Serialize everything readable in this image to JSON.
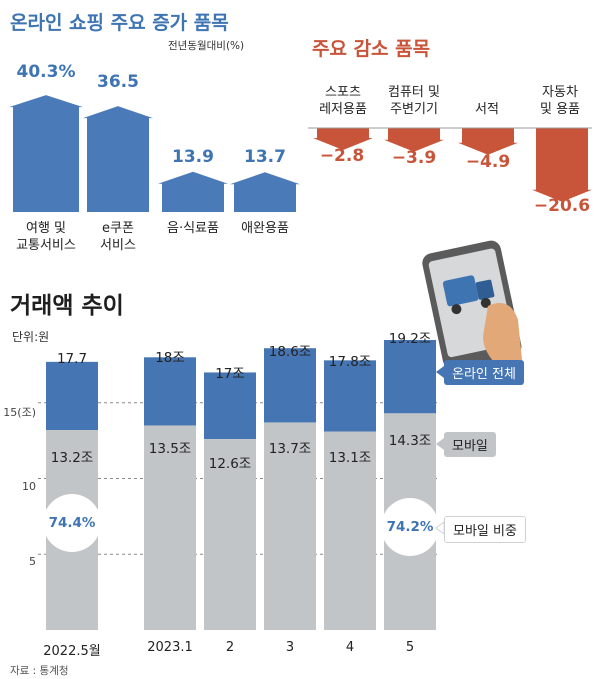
{
  "increase": {
    "title": "온라인 쇼핑 주요 증가 품목",
    "unit_note": "전년동월대비(%)",
    "items": [
      {
        "label_line1": "여행 및",
        "label_line2": "교통서비스",
        "value_label": "40.3%"
      },
      {
        "label_line1": "e쿠폰",
        "label_line2": "서비스",
        "value_label": "36.5"
      },
      {
        "label_line1": "음·식료품",
        "label_line2": "",
        "value_label": "13.9"
      },
      {
        "label_line1": "애완용품",
        "label_line2": "",
        "value_label": "13.7"
      }
    ]
  },
  "decrease": {
    "title": "주요 감소 품목",
    "items": [
      {
        "label_line1": "스포츠",
        "label_line2": "레저용품",
        "value_label": "−2.8"
      },
      {
        "label_line1": "컴퓨터 및",
        "label_line2": "주변기기",
        "value_label": "−3.9"
      },
      {
        "label_line1": "서적",
        "label_line2": "",
        "value_label": "−4.9"
      },
      {
        "label_line1": "자동차",
        "label_line2": "및 용품",
        "value_label": "−20.6"
      }
    ]
  },
  "volume": {
    "title": "거래액 추이",
    "unit": "단위:원",
    "source": "자료 : 통계청",
    "legend": {
      "total": "온라인 전체",
      "mobile": "모바일",
      "share": "모바일 비중"
    }
  },
  "colors": {
    "blue": "#4675b3",
    "gray": "#c1c5c8",
    "red": "#c8553a"
  },
  "chart_data": [
    {
      "type": "bar",
      "title": "온라인 쇼핑 주요 증가 품목",
      "ylabel": "전년동월대비(%)",
      "categories": [
        "여행 및 교통서비스",
        "e쿠폰 서비스",
        "음·식료품",
        "애완용품"
      ],
      "values": [
        40.3,
        36.5,
        13.9,
        13.7
      ]
    },
    {
      "type": "bar",
      "title": "주요 감소 품목",
      "categories": [
        "스포츠 레저용품",
        "컴퓨터 및 주변기기",
        "서적",
        "자동차 및 용품"
      ],
      "values": [
        -2.8,
        -3.9,
        -4.9,
        -20.6
      ]
    },
    {
      "type": "bar",
      "title": "거래액 추이",
      "ylabel": "단위:원",
      "categories": [
        "2022.5월",
        "2023.1",
        "2",
        "3",
        "4",
        "5"
      ],
      "series": [
        {
          "name": "온라인 전체",
          "values": [
            17.7,
            18,
            17,
            18.6,
            17.8,
            19.2
          ],
          "labels": [
            "17.7",
            "18조",
            "17조",
            "18.6조",
            "17.8조",
            "19.2조"
          ]
        },
        {
          "name": "모바일",
          "values": [
            13.2,
            13.5,
            12.6,
            13.7,
            13.1,
            14.3
          ],
          "labels": [
            "13.2조",
            "13.5조",
            "12.6조",
            "13.7조",
            "13.1조",
            "14.3조"
          ]
        }
      ],
      "mobile_share": [
        {
          "category": "2022.5월",
          "value_label": "74.4%"
        },
        {
          "category": "5",
          "value_label": "74.2%"
        }
      ],
      "ylim": [
        0,
        20
      ],
      "yticks": [
        {
          "value": 5,
          "label": "5"
        },
        {
          "value": 10,
          "label": "10"
        },
        {
          "value": 15,
          "label": "15(조)"
        }
      ]
    }
  ]
}
